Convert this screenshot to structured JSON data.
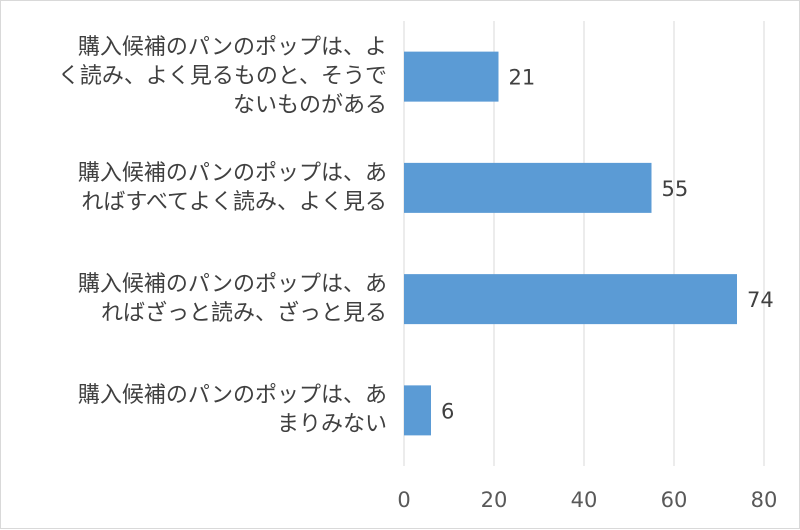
{
  "chart_data": {
    "type": "bar",
    "orientation": "horizontal",
    "categories": [
      "購入候補のパンのポップは、よく読み、よく見るものと、そうでないものがある",
      "購入候補のパンのポップは、あればすべてよく読み、よく見る",
      "購入候補のパンのポップは、あればざっと読み、ざっと見る",
      "購入候補のパンのポップは、あまりみない"
    ],
    "category_lines": [
      [
        "購入候補のパンのポップは、よ",
        "く読み、よく見るものと、そうで",
        "ないものがある"
      ],
      [
        "購入候補のパンのポップは、あ",
        "ればすべてよく読み、よく見る"
      ],
      [
        "購入候補のパンのポップは、あ",
        "ればざっと読み、ざっと見る"
      ],
      [
        "購入候補のパンのポップは、あ",
        "まりみない"
      ]
    ],
    "values": [
      21,
      55,
      74,
      6
    ],
    "xlim": [
      0,
      80
    ],
    "xticks": [
      0,
      20,
      40,
      60,
      80
    ],
    "grid": true,
    "data_labels": true,
    "bar_color": "#5b9bd5",
    "grid_color": "#d9d9d9",
    "title": "",
    "xlabel": "",
    "ylabel": ""
  }
}
